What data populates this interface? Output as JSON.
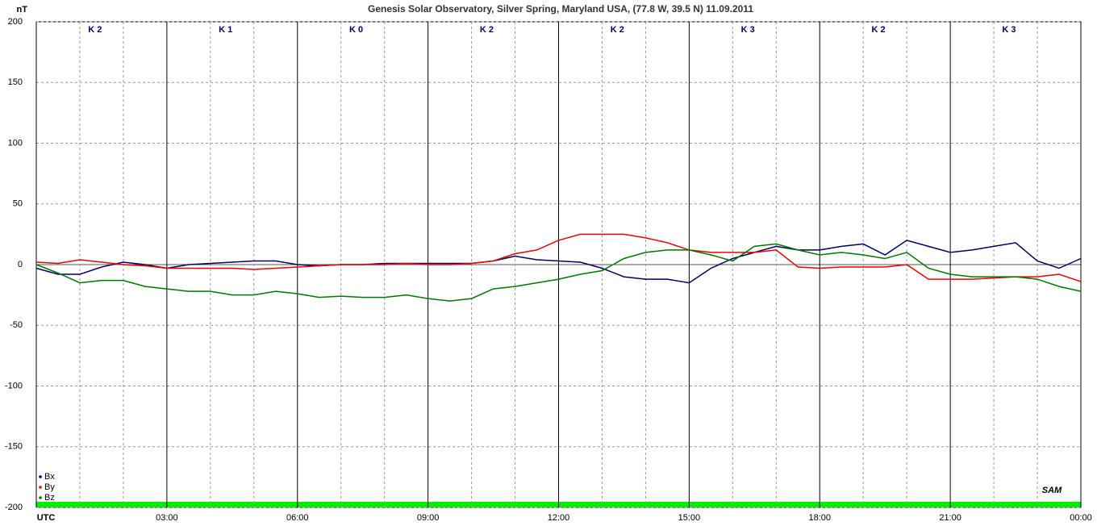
{
  "chart_data": {
    "type": "line",
    "title": "Genesis Solar Observatory, Silver Spring, Maryland USA, (77.8 W, 39.5 N)  11.09.2011",
    "y_label": "nT",
    "logo": "SAM",
    "k_index": [
      "K 2",
      "K 1",
      "K 0",
      "K 2",
      "K 2",
      "K 3",
      "K 2",
      "K 3"
    ],
    "x": [
      0,
      0.5,
      1,
      1.5,
      2,
      2.5,
      3,
      3.5,
      4,
      4.5,
      5,
      5.5,
      6,
      6.5,
      7,
      7.5,
      8,
      8.5,
      9,
      9.5,
      10,
      10.5,
      11,
      11.5,
      12,
      12.5,
      13,
      13.5,
      14,
      14.5,
      15,
      15.5,
      16,
      16.5,
      17,
      17.5,
      18,
      18.5,
      19,
      19.5,
      20,
      20.5,
      21,
      21.5,
      22,
      22.5,
      23,
      23.5,
      24
    ],
    "series": [
      {
        "name": "Bx",
        "color": "#000066",
        "values": [
          -3,
          -8,
          -8,
          -2,
          2,
          0,
          -3,
          0,
          1,
          2,
          3,
          3,
          0,
          -1,
          0,
          0,
          1,
          1,
          1,
          1,
          1,
          3,
          7,
          4,
          3,
          2,
          -3,
          -10,
          -12,
          -12,
          -15,
          -3,
          5,
          10,
          15,
          12,
          12,
          15,
          17,
          8,
          20,
          15,
          10,
          12,
          15,
          18,
          3,
          -3,
          5
        ]
      },
      {
        "name": "By",
        "color": "#ee0000",
        "values": [
          2,
          1,
          4,
          2,
          0,
          -1,
          -3,
          -3,
          -3,
          -3,
          -4,
          -3,
          -2,
          -1,
          0,
          0,
          0,
          1,
          0,
          0,
          1,
          3,
          9,
          12,
          20,
          25,
          25,
          25,
          22,
          18,
          12,
          10,
          10,
          10,
          12,
          -2,
          -3,
          -2,
          -2,
          -2,
          0,
          -12,
          -12,
          -12,
          -11,
          -10,
          -10,
          -8,
          -14
        ]
      },
      {
        "name": "Bz",
        "color": "#007700",
        "values": [
          0,
          -7,
          -15,
          -13,
          -13,
          -18,
          -20,
          -22,
          -22,
          -25,
          -25,
          -22,
          -24,
          -27,
          -26,
          -27,
          -27,
          -25,
          -28,
          -30,
          -28,
          -20,
          -18,
          -15,
          -12,
          -8,
          -5,
          5,
          10,
          12,
          12,
          8,
          3,
          15,
          17,
          12,
          8,
          10,
          8,
          5,
          10,
          -3,
          -8,
          -10,
          -10,
          -10,
          -12,
          -18,
          -22
        ]
      }
    ],
    "xlim": [
      0,
      24
    ],
    "xticks": [
      {
        "value": 0,
        "label": "UTC"
      },
      {
        "value": 3,
        "label": "03:00"
      },
      {
        "value": 6,
        "label": "06:00"
      },
      {
        "value": 9,
        "label": "09:00"
      },
      {
        "value": 12,
        "label": "12:00"
      },
      {
        "value": 15,
        "label": "15:00"
      },
      {
        "value": 18,
        "label": "18:00"
      },
      {
        "value": 21,
        "label": "21:00"
      },
      {
        "value": 24,
        "label": "00:00"
      }
    ],
    "xminorticks": [
      1,
      2,
      4,
      5,
      7,
      8,
      10,
      11,
      13,
      14,
      16,
      17,
      19,
      20,
      22,
      23
    ],
    "ylim": [
      -200,
      200
    ],
    "yticks": [
      -200,
      -150,
      -100,
      -50,
      0,
      50,
      100,
      150,
      200
    ],
    "grid": true,
    "legend": "bottom-left"
  }
}
